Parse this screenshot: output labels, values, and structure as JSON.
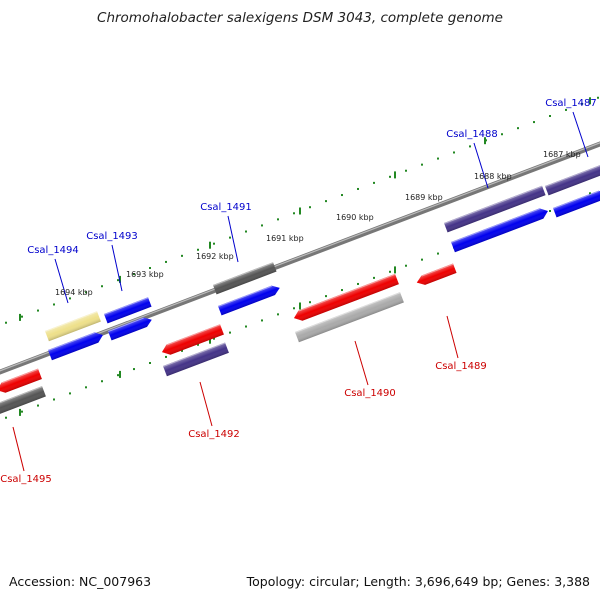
{
  "title": "Chromohalobacter salexigens DSM 3043, complete genome",
  "footer": {
    "accession": "Accession: NC_007963",
    "summary": "Topology: circular; Length: 3,696,649 bp; Genes: 3,388"
  },
  "colors": {
    "forward_cds": "#0000ee",
    "reverse_cds": "#ee0000",
    "forward_gene": "#555555",
    "reverse_gene": "#aaaaaa",
    "other_gene": "#443388",
    "pseudogene": "#eee08a",
    "ruler": "#228822",
    "label_forward": "#0000cc",
    "label_reverse": "#cc0000"
  },
  "kbp_labels": [
    "1687 kbp",
    "1688 kbp",
    "1689 kbp",
    "1690 kbp",
    "1691 kbp",
    "1692 kbp",
    "1693 kbp",
    "1694 kbp"
  ],
  "gene_labels": {
    "forward": [
      "Csal_1487",
      "Csal_1488",
      "Csal_1491",
      "Csal_1493",
      "Csal_1494"
    ],
    "reverse": [
      "Csal_1489",
      "Csal_1490",
      "Csal_1492",
      "Csal_1495"
    ]
  }
}
